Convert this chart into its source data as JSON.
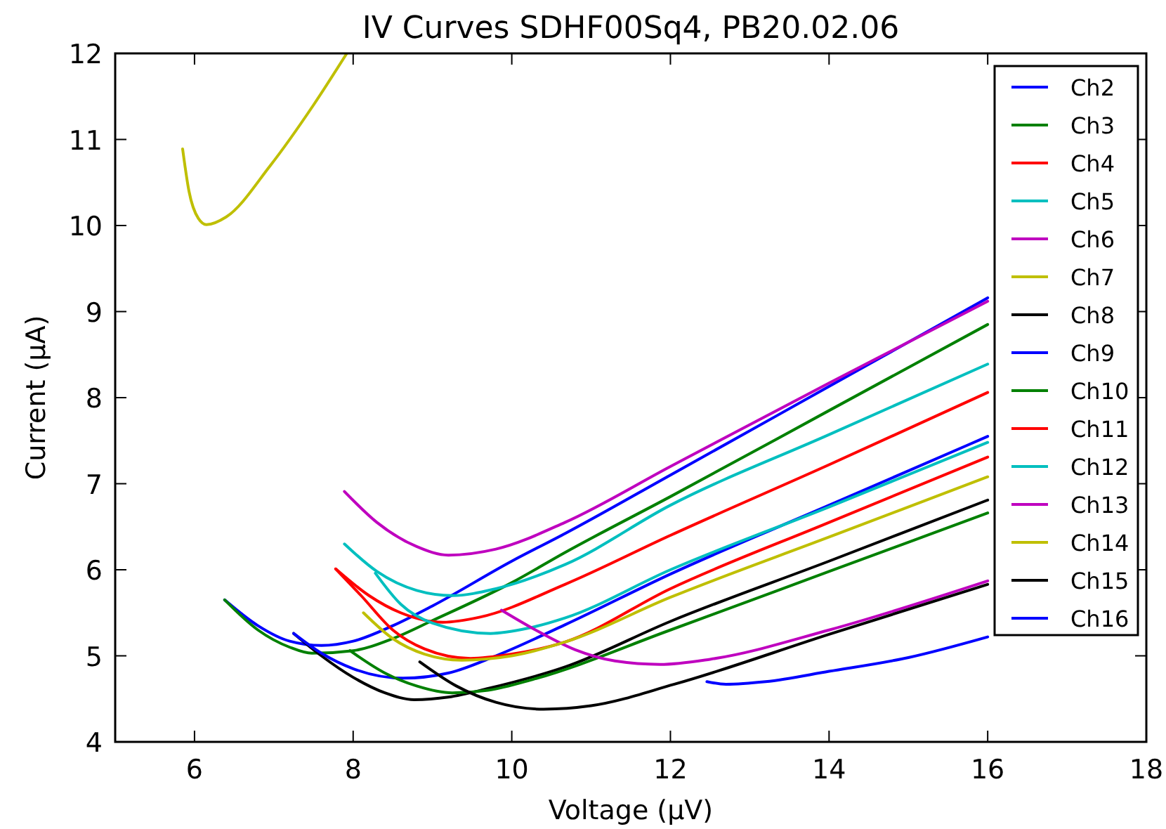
{
  "chart_data": {
    "type": "line",
    "title": "IV Curves SDHF00Sq4, PB20.02.06",
    "xlabel": "Voltage (μV)",
    "ylabel": "Current (μA)",
    "xlim": [
      5,
      18
    ],
    "ylim": [
      4,
      12
    ],
    "xticks": [
      6,
      8,
      10,
      12,
      14,
      16,
      18
    ],
    "yticks": [
      4,
      5,
      6,
      7,
      8,
      9,
      10,
      11,
      12
    ],
    "grid": false,
    "legend": "top right",
    "marker": "none",
    "line_style": "solid",
    "series": [
      {
        "name": "Ch2",
        "color": "#0000ff",
        "x": [
          6.38,
          6.8,
          7.2,
          7.6,
          8.0,
          8.5,
          9.0,
          10.0,
          10.67,
          12,
          14,
          16
        ],
        "values": [
          5.65,
          5.35,
          5.17,
          5.12,
          5.17,
          5.35,
          5.58,
          6.1,
          6.42,
          7.1,
          8.13,
          9.16
        ]
      },
      {
        "name": "Ch3",
        "color": "#008000",
        "x": [
          6.38,
          6.8,
          7.2,
          7.48,
          8.0,
          8.5,
          9.0,
          10.0,
          10.67,
          12,
          14,
          16
        ],
        "values": [
          5.65,
          5.3,
          5.1,
          5.03,
          5.06,
          5.2,
          5.41,
          5.85,
          6.2,
          6.85,
          7.85,
          8.85
        ]
      },
      {
        "name": "Ch4",
        "color": "#ff0000",
        "x": [
          7.78,
          8.2,
          8.6,
          9.13,
          9.6,
          10.67,
          12,
          14,
          16
        ],
        "values": [
          6.01,
          5.7,
          5.5,
          5.39,
          5.45,
          5.83,
          6.4,
          7.22,
          8.06
        ]
      },
      {
        "name": "Ch5",
        "color": "#00bfbf",
        "x": [
          7.89,
          8.3,
          8.8,
          9.25,
          9.8,
          10.67,
          12,
          14,
          16
        ],
        "values": [
          6.3,
          5.98,
          5.76,
          5.7,
          5.78,
          6.06,
          6.75,
          7.57,
          8.39
        ]
      },
      {
        "name": "Ch6",
        "color": "#bf00bf",
        "x": [
          7.89,
          8.3,
          8.8,
          9.2,
          9.8,
          10.67,
          12,
          14,
          16
        ],
        "values": [
          6.91,
          6.55,
          6.27,
          6.17,
          6.24,
          6.55,
          7.2,
          8.17,
          9.12
        ]
      },
      {
        "name": "Ch7",
        "color": "#bfbf00",
        "x": [
          5.85,
          5.93,
          6.05,
          6.15,
          6.4,
          6.95,
          7.5,
          7.92
        ],
        "values": [
          10.89,
          10.4,
          10.08,
          10.01,
          10.1,
          10.69,
          11.4,
          12
        ]
      },
      {
        "name": "Ch8",
        "color": "#000000",
        "x": [
          7.25,
          7.6,
          8.0,
          8.4,
          8.77,
          9.2,
          9.7,
          10.67,
          12,
          14,
          16
        ],
        "values": [
          5.26,
          5.0,
          4.75,
          4.57,
          4.49,
          4.52,
          4.62,
          4.87,
          5.4,
          6.1,
          6.81
        ]
      },
      {
        "name": "Ch9",
        "color": "#0000ff",
        "x": [
          7.25,
          7.6,
          8.0,
          8.63,
          9.2,
          9.8,
          10.67,
          12,
          14,
          16
        ],
        "values": [
          5.26,
          5.03,
          4.85,
          4.74,
          4.8,
          5.0,
          5.36,
          5.95,
          6.75,
          7.55
        ]
      },
      {
        "name": "Ch10",
        "color": "#008000",
        "x": [
          7.96,
          8.4,
          8.8,
          9.25,
          9.7,
          10.28,
          12,
          14,
          16
        ],
        "values": [
          5.06,
          4.8,
          4.65,
          4.57,
          4.6,
          4.73,
          5.3,
          5.98,
          6.66
        ]
      },
      {
        "name": "Ch11",
        "color": "#ff0000",
        "x": [
          7.78,
          8.1,
          8.5,
          8.9,
          9.48,
          10.0,
          10.67,
          12,
          14,
          16
        ],
        "values": [
          6.01,
          5.7,
          5.3,
          5.08,
          4.97,
          5.02,
          5.16,
          5.78,
          6.55,
          7.31
        ]
      },
      {
        "name": "Ch12",
        "color": "#00bfbf",
        "x": [
          8.28,
          8.6,
          9.0,
          9.73,
          10.2,
          10.67,
          12,
          14,
          16
        ],
        "values": [
          5.96,
          5.6,
          5.38,
          5.26,
          5.32,
          5.44,
          6.0,
          6.73,
          7.48
        ]
      },
      {
        "name": "Ch13",
        "color": "#bf00bf",
        "x": [
          9.87,
          10.28,
          10.8,
          11.3,
          11.87,
          12.5,
          14,
          16
        ],
        "values": [
          5.53,
          5.31,
          5.07,
          4.94,
          4.9,
          4.96,
          5.3,
          5.87
        ]
      },
      {
        "name": "Ch14",
        "color": "#bfbf00",
        "x": [
          8.13,
          8.5,
          8.9,
          9.37,
          10.0,
          10.67,
          12,
          14,
          16
        ],
        "values": [
          5.5,
          5.2,
          5.02,
          4.95,
          5.0,
          5.16,
          5.68,
          6.38,
          7.08
        ]
      },
      {
        "name": "Ch15",
        "color": "#000000",
        "x": [
          8.84,
          9.3,
          9.8,
          10.4,
          11.0,
          12.05,
          14,
          16
        ],
        "values": [
          4.93,
          4.65,
          4.46,
          4.38,
          4.42,
          4.67,
          5.25,
          5.83
        ]
      },
      {
        "name": "Ch16",
        "color": "#0000ff",
        "x": [
          12.46,
          12.7,
          13.2,
          14,
          15,
          16
        ],
        "values": [
          4.7,
          4.67,
          4.7,
          4.82,
          4.98,
          5.22
        ]
      }
    ]
  }
}
